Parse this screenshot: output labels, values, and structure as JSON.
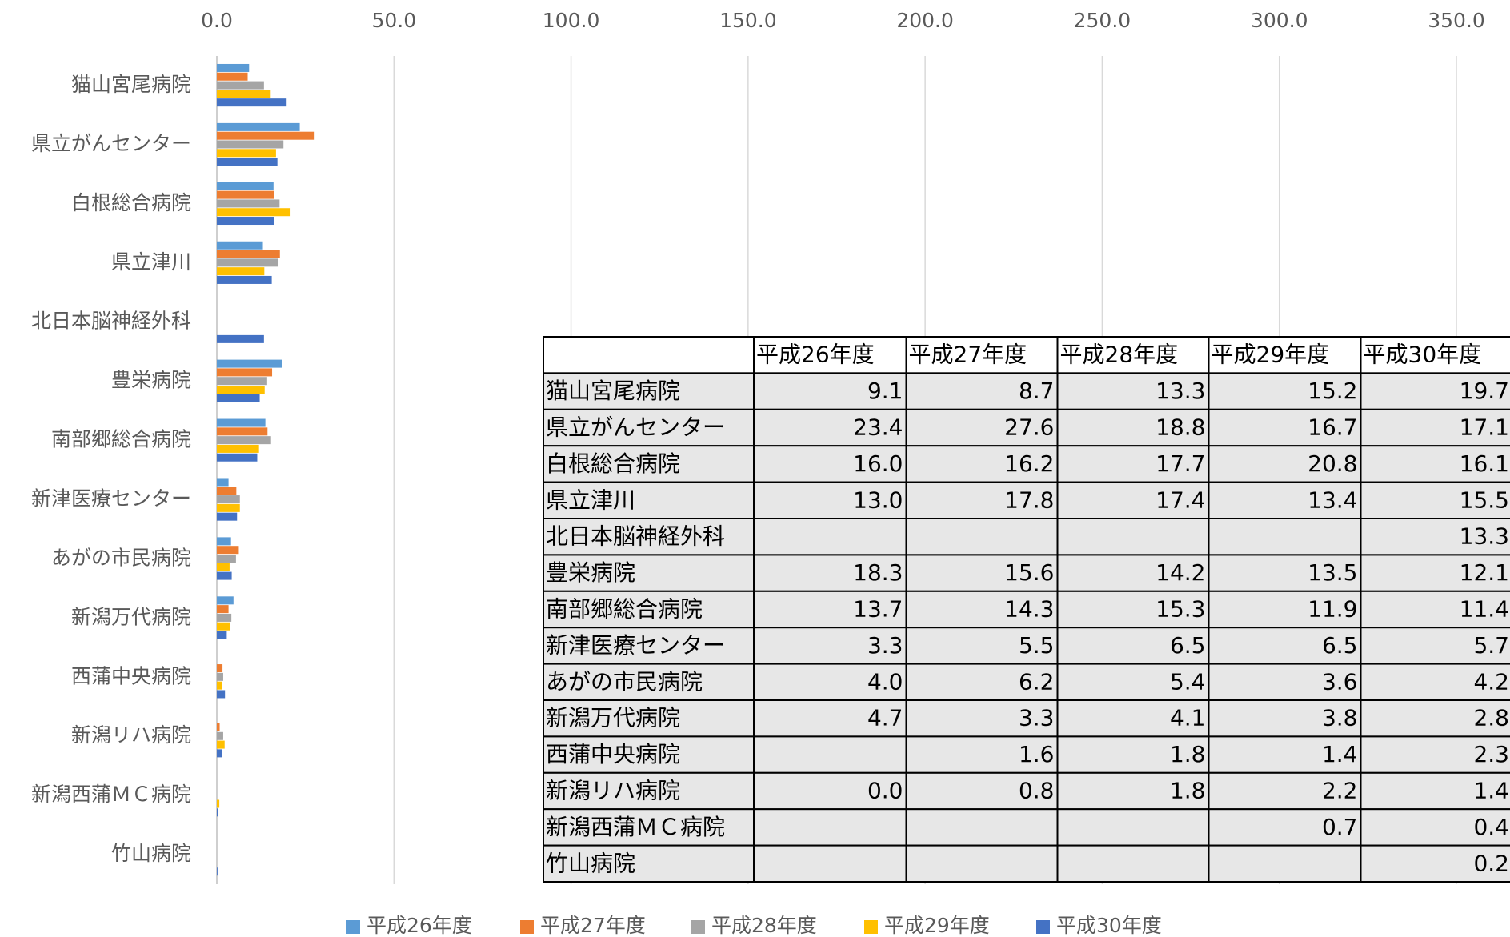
{
  "chart_data": {
    "type": "bar",
    "orientation": "horizontal",
    "categories": [
      "猫山宮尾病院",
      "県立がんセンター",
      "白根総合病院",
      "県立津川",
      "北日本脳神経外科",
      "豊栄病院",
      "南部郷総合病院",
      "新津医療センター",
      "あがの市民病院",
      "新潟万代病院",
      "西蒲中央病院",
      "新潟リハ病院",
      "新潟西蒲ＭＣ病院",
      "竹山病院"
    ],
    "series": [
      {
        "name": "平成26年度",
        "color": "#5b9bd5",
        "values": [
          9.1,
          23.4,
          16.0,
          13.0,
          null,
          18.3,
          13.7,
          3.3,
          4.0,
          4.7,
          null,
          0.0,
          null,
          null
        ],
        "value_labels": [
          "9.1",
          "23.4",
          "16.0",
          "13.0",
          null,
          "18.3",
          "13.7",
          "3.3",
          "4.0",
          "4.7",
          null,
          "0.0",
          null,
          null
        ]
      },
      {
        "name": "平成27年度",
        "color": "#ed7d31",
        "values": [
          8.7,
          27.6,
          16.2,
          17.8,
          null,
          15.6,
          14.3,
          5.5,
          6.2,
          3.3,
          1.6,
          0.8,
          null,
          null
        ],
        "value_labels": [
          "8.7",
          "27.6",
          "16.2",
          "17.8",
          null,
          "15.6",
          "14.3",
          "5.5",
          "6.2",
          "3.3",
          "1.6",
          "0.8",
          null,
          null
        ]
      },
      {
        "name": "平成28年度",
        "color": "#a5a5a5",
        "values": [
          13.3,
          18.8,
          17.7,
          17.4,
          null,
          14.2,
          15.3,
          6.5,
          5.4,
          4.1,
          1.8,
          1.8,
          null,
          null
        ],
        "value_labels": [
          "13.3",
          "18.8",
          "17.7",
          "17.4",
          null,
          "14.2",
          "15.3",
          "6.5",
          "5.4",
          "4.1",
          "1.8",
          "1.8",
          null,
          null
        ]
      },
      {
        "name": "平成29年度",
        "color": "#ffc000",
        "values": [
          15.2,
          16.7,
          20.8,
          13.4,
          null,
          13.5,
          11.9,
          6.5,
          3.6,
          3.8,
          1.4,
          2.2,
          0.7,
          null
        ],
        "value_labels": [
          "15.2",
          "16.7",
          "20.8",
          "13.4",
          null,
          "13.5",
          "11.9",
          "6.5",
          "3.6",
          "3.8",
          "1.4",
          "2.2",
          "0.7",
          null
        ]
      },
      {
        "name": "平成30年度",
        "color": "#4472c4",
        "values": [
          19.7,
          17.1,
          16.1,
          15.5,
          13.3,
          12.1,
          11.4,
          5.7,
          4.2,
          2.8,
          2.3,
          1.4,
          0.4,
          0.2
        ],
        "value_labels": [
          "19.7",
          "17.1",
          "16.1",
          "15.5",
          "13.3",
          "12.1",
          "11.4",
          "5.7",
          "4.2",
          "2.8",
          "2.3",
          "1.4",
          "0.4",
          "0.2"
        ]
      }
    ],
    "xlim": [
      0,
      350
    ],
    "xticks": [
      {
        "value": 0,
        "label": "0.0"
      },
      {
        "value": 50,
        "label": "50.0"
      },
      {
        "value": 100,
        "label": "100.0"
      },
      {
        "value": 150,
        "label": "150.0"
      },
      {
        "value": 200,
        "label": "200.0"
      },
      {
        "value": 250,
        "label": "250.0"
      },
      {
        "value": 300,
        "label": "300.0"
      },
      {
        "value": 350,
        "label": "350.0"
      }
    ],
    "grid": true,
    "legend": "bottom",
    "data_table": true
  }
}
